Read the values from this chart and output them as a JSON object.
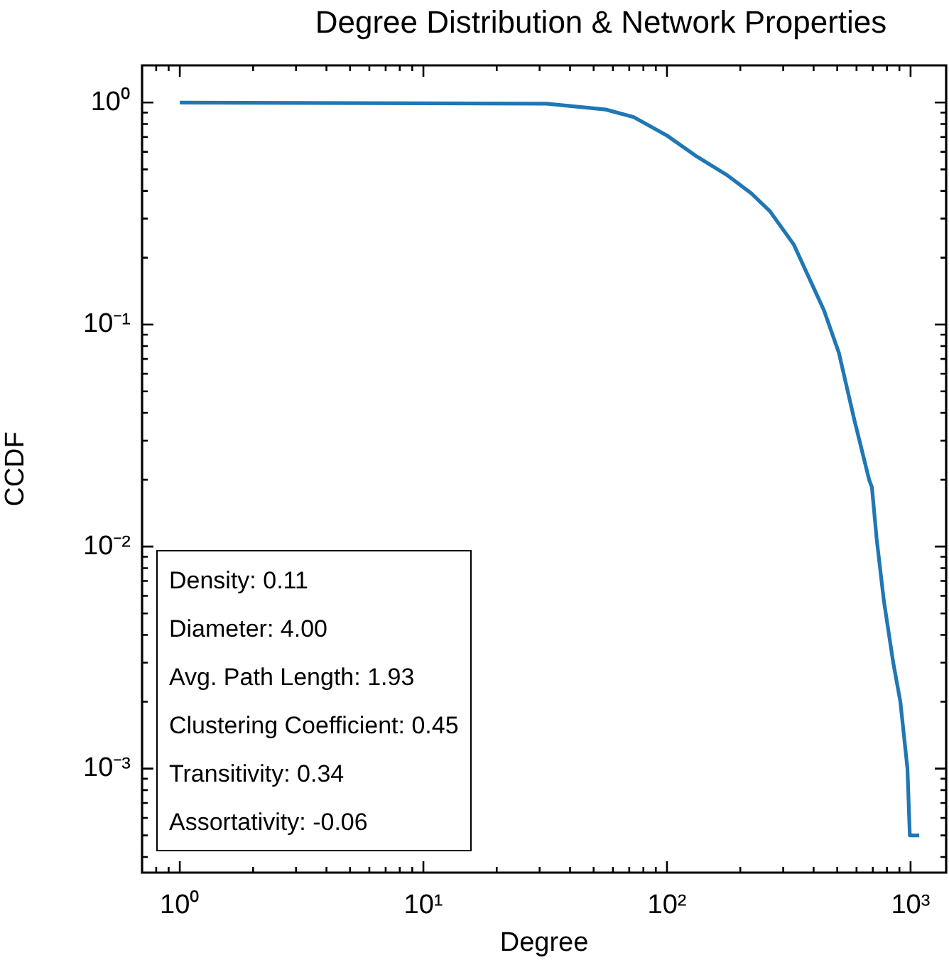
{
  "chart_data": {
    "type": "line",
    "title": "Degree Distribution & Network Properties",
    "xlabel": "Degree",
    "ylabel": "CCDF",
    "log": "xy",
    "xlim": [
      0.7,
      1400
    ],
    "xticks": [
      {
        "value": 0.8,
        "label": null
      },
      {
        "value": 0.9,
        "label": null
      },
      {
        "value": 1,
        "label": "10⁰"
      },
      {
        "value": 2,
        "label": null
      },
      {
        "value": 3,
        "label": null
      },
      {
        "value": 4,
        "label": null
      },
      {
        "value": 5,
        "label": null
      },
      {
        "value": 6,
        "label": null
      },
      {
        "value": 7,
        "label": null
      },
      {
        "value": 8,
        "label": null
      },
      {
        "value": 9,
        "label": null
      },
      {
        "value": 10,
        "label": "10¹"
      },
      {
        "value": 20,
        "label": null
      },
      {
        "value": 30,
        "label": null
      },
      {
        "value": 40,
        "label": null
      },
      {
        "value": 50,
        "label": null
      },
      {
        "value": 60,
        "label": null
      },
      {
        "value": 70,
        "label": null
      },
      {
        "value": 80,
        "label": null
      },
      {
        "value": 90,
        "label": null
      },
      {
        "value": 100,
        "label": "10²"
      },
      {
        "value": 200,
        "label": null
      },
      {
        "value": 300,
        "label": null
      },
      {
        "value": 400,
        "label": null
      },
      {
        "value": 500,
        "label": null
      },
      {
        "value": 600,
        "label": null
      },
      {
        "value": 700,
        "label": null
      },
      {
        "value": 800,
        "label": null
      },
      {
        "value": 900,
        "label": null
      },
      {
        "value": 1000,
        "label": "10³"
      }
    ],
    "ylim": [
      0.00034,
      1.47
    ],
    "yticks": [
      {
        "value": 0.0004,
        "label": null
      },
      {
        "value": 0.0005,
        "label": null
      },
      {
        "value": 0.0006,
        "label": null
      },
      {
        "value": 0.0007,
        "label": null
      },
      {
        "value": 0.0008,
        "label": null
      },
      {
        "value": 0.0009,
        "label": null
      },
      {
        "value": 0.001,
        "label": "10⁻³"
      },
      {
        "value": 0.002,
        "label": null
      },
      {
        "value": 0.003,
        "label": null
      },
      {
        "value": 0.004,
        "label": null
      },
      {
        "value": 0.005,
        "label": null
      },
      {
        "value": 0.006,
        "label": null
      },
      {
        "value": 0.007,
        "label": null
      },
      {
        "value": 0.008,
        "label": null
      },
      {
        "value": 0.009,
        "label": null
      },
      {
        "value": 0.01,
        "label": "10⁻²"
      },
      {
        "value": 0.02,
        "label": null
      },
      {
        "value": 0.03,
        "label": null
      },
      {
        "value": 0.04,
        "label": null
      },
      {
        "value": 0.05,
        "label": null
      },
      {
        "value": 0.06,
        "label": null
      },
      {
        "value": 0.07,
        "label": null
      },
      {
        "value": 0.08,
        "label": null
      },
      {
        "value": 0.09,
        "label": null
      },
      {
        "value": 0.1,
        "label": "10⁻¹"
      },
      {
        "value": 0.2,
        "label": null
      },
      {
        "value": 0.3,
        "label": null
      },
      {
        "value": 0.4,
        "label": null
      },
      {
        "value": 0.5,
        "label": null
      },
      {
        "value": 0.6,
        "label": null
      },
      {
        "value": 0.7,
        "label": null
      },
      {
        "value": 0.8,
        "label": null
      },
      {
        "value": 0.9,
        "label": null
      },
      {
        "value": 1,
        "label": "10⁰"
      }
    ],
    "series": [
      {
        "color": "#1f77b4",
        "x": [
          1,
          32,
          56,
          73,
          100,
          133,
          177,
          222,
          264,
          331,
          441,
          508,
          587,
          676,
          694,
          726,
          777,
          849,
          908,
          971,
          993,
          1085
        ],
        "values": [
          1,
          0.988,
          0.93,
          0.86,
          0.71,
          0.57,
          0.47,
          0.39,
          0.325,
          0.23,
          0.116,
          0.0745,
          0.0374,
          0.02,
          0.0185,
          0.0108,
          0.0057,
          0.003,
          0.002,
          0.001,
          0.0005,
          0.0005
        ]
      }
    ],
    "annotations": [
      "Density: 0.11",
      "Diameter: 4.00",
      "Avg. Path Length: 1.93",
      "Clustering Coefficient: 0.45",
      "Transitivity: 0.34",
      "Assortativity: -0.06"
    ]
  }
}
